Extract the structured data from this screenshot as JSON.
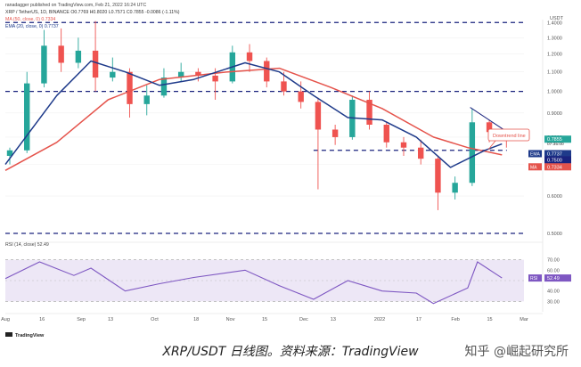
{
  "header": {
    "line1": "ranadagger published on TradingView.com, Feb 21, 2022 16:24 UTC",
    "line2": "XRP / TetherUS, 1D, BINANCE O0.7769 H0.8020 L0.7571 C0.7855 -0.0086 (-1.11%)",
    "line3": "MA (50, close, 0) 0.7334",
    "line4": "EMA (20, close, 0) 0.7737"
  },
  "price_axis": {
    "unit": "USDT",
    "ticks": [
      "1.4000",
      "1.3000",
      "1.2000",
      "1.1000",
      "1.0000",
      "0.9000",
      "0.8000",
      "0.7000",
      "0.6000",
      "0.5000"
    ]
  },
  "badges": {
    "price": "0.7855",
    "countdown": "07:35:00",
    "ema": "0.7737",
    "support": "0.7500",
    "ma": "0.7334",
    "ema_tag": "EMA",
    "ma_tag": "MA",
    "rsi_tag": "RSI",
    "rsi": "52.49"
  },
  "annotation": "Downtrend line",
  "rsi_header": "RSI (14, close) 52.49",
  "rsi_axis": {
    "ticks": [
      "70.00",
      "60.00",
      "40.00",
      "30.00"
    ]
  },
  "time_axis": [
    "Aug",
    "16",
    "Sep",
    "13",
    "Oct",
    "18",
    "Nov",
    "15",
    "Dec",
    "13",
    "2022",
    "17",
    "Feb",
    "15",
    "Mar"
  ],
  "footer_brand": "TradingView",
  "caption": "XRP/USDT 日线图。资料来源：TradingView",
  "watermark": "知乎 @崛起研究所",
  "colors": {
    "up": "#26a69a",
    "down": "#ef5350",
    "ema": "#1e3a8a",
    "ma": "#e5534b",
    "level_line": "#1a237e",
    "rsi_line": "#7e57c2",
    "rsi_band": "#ede7f6"
  },
  "chart_data": {
    "type": "candlestick",
    "y_scale": "log",
    "ylim": [
      0.5,
      1.42
    ],
    "horizontal_levels": [
      1.4,
      1.0,
      0.75,
      0.5
    ],
    "trendline": {
      "from": [
        "2022-02-07",
        0.925
      ],
      "to": [
        "2022-02-23",
        0.815
      ]
    },
    "date_range": [
      "2021-08-01",
      "2022-02-21"
    ],
    "ohlc_weekly_approx": [
      {
        "date": "2021-08-01",
        "o": 0.73,
        "h": 0.76,
        "l": 0.7,
        "c": 0.75
      },
      {
        "date": "2021-08-08",
        "o": 0.75,
        "h": 1.1,
        "l": 0.74,
        "c": 1.04
      },
      {
        "date": "2021-08-15",
        "o": 1.04,
        "h": 1.35,
        "l": 1.02,
        "c": 1.25
      },
      {
        "date": "2021-08-22",
        "o": 1.25,
        "h": 1.36,
        "l": 1.1,
        "c": 1.15
      },
      {
        "date": "2021-08-29",
        "o": 1.15,
        "h": 1.3,
        "l": 1.12,
        "c": 1.22
      },
      {
        "date": "2021-09-05",
        "o": 1.22,
        "h": 1.41,
        "l": 1.0,
        "c": 1.07
      },
      {
        "date": "2021-09-12",
        "o": 1.07,
        "h": 1.18,
        "l": 1.05,
        "c": 1.1
      },
      {
        "date": "2021-09-19",
        "o": 1.1,
        "h": 1.12,
        "l": 0.88,
        "c": 0.94
      },
      {
        "date": "2021-09-26",
        "o": 0.94,
        "h": 1.03,
        "l": 0.89,
        "c": 0.98
      },
      {
        "date": "2021-10-03",
        "o": 0.98,
        "h": 1.12,
        "l": 0.97,
        "c": 1.07
      },
      {
        "date": "2021-10-10",
        "o": 1.07,
        "h": 1.15,
        "l": 1.05,
        "c": 1.1
      },
      {
        "date": "2021-10-17",
        "o": 1.1,
        "h": 1.12,
        "l": 1.05,
        "c": 1.08
      },
      {
        "date": "2021-10-24",
        "o": 1.08,
        "h": 1.12,
        "l": 0.96,
        "c": 1.05
      },
      {
        "date": "2021-10-31",
        "o": 1.05,
        "h": 1.25,
        "l": 1.04,
        "c": 1.21
      },
      {
        "date": "2021-11-07",
        "o": 1.21,
        "h": 1.26,
        "l": 1.1,
        "c": 1.16
      },
      {
        "date": "2021-11-14",
        "o": 1.16,
        "h": 1.18,
        "l": 1.02,
        "c": 1.05
      },
      {
        "date": "2021-11-21",
        "o": 1.05,
        "h": 1.1,
        "l": 0.98,
        "c": 1.0
      },
      {
        "date": "2021-11-28",
        "o": 1.0,
        "h": 1.05,
        "l": 0.92,
        "c": 0.95
      },
      {
        "date": "2021-12-05",
        "o": 0.95,
        "h": 0.97,
        "l": 0.62,
        "c": 0.83
      },
      {
        "date": "2021-12-12",
        "o": 0.83,
        "h": 0.85,
        "l": 0.77,
        "c": 0.8
      },
      {
        "date": "2021-12-19",
        "o": 0.8,
        "h": 0.98,
        "l": 0.79,
        "c": 0.96
      },
      {
        "date": "2021-12-26",
        "o": 0.96,
        "h": 1.0,
        "l": 0.83,
        "c": 0.85
      },
      {
        "date": "2022-01-02",
        "o": 0.85,
        "h": 0.86,
        "l": 0.76,
        "c": 0.78
      },
      {
        "date": "2022-01-09",
        "o": 0.78,
        "h": 0.8,
        "l": 0.73,
        "c": 0.76
      },
      {
        "date": "2022-01-16",
        "o": 0.76,
        "h": 0.79,
        "l": 0.7,
        "c": 0.72
      },
      {
        "date": "2022-01-23",
        "o": 0.72,
        "h": 0.73,
        "l": 0.56,
        "c": 0.61
      },
      {
        "date": "2022-01-30",
        "o": 0.61,
        "h": 0.66,
        "l": 0.59,
        "c": 0.64
      },
      {
        "date": "2022-02-06",
        "o": 0.64,
        "h": 0.92,
        "l": 0.63,
        "c": 0.86
      },
      {
        "date": "2022-02-13",
        "o": 0.86,
        "h": 0.87,
        "l": 0.78,
        "c": 0.82
      },
      {
        "date": "2022-02-20",
        "o": 0.82,
        "h": 0.82,
        "l": 0.76,
        "c": 0.7855
      }
    ],
    "ema20": [
      {
        "date": "2021-08-01",
        "v": 0.7
      },
      {
        "date": "2021-08-22",
        "v": 0.98
      },
      {
        "date": "2021-09-05",
        "v": 1.16
      },
      {
        "date": "2021-09-19",
        "v": 1.1
      },
      {
        "date": "2021-10-03",
        "v": 1.03
      },
      {
        "date": "2021-10-17",
        "v": 1.06
      },
      {
        "date": "2021-11-07",
        "v": 1.15
      },
      {
        "date": "2021-11-21",
        "v": 1.1
      },
      {
        "date": "2021-12-05",
        "v": 0.98
      },
      {
        "date": "2021-12-19",
        "v": 0.88
      },
      {
        "date": "2022-01-02",
        "v": 0.87
      },
      {
        "date": "2022-01-16",
        "v": 0.8
      },
      {
        "date": "2022-01-30",
        "v": 0.69
      },
      {
        "date": "2022-02-13",
        "v": 0.75
      },
      {
        "date": "2022-02-20",
        "v": 0.7737
      }
    ],
    "ma50": [
      {
        "date": "2021-08-01",
        "v": 0.68
      },
      {
        "date": "2021-08-22",
        "v": 0.78
      },
      {
        "date": "2021-09-12",
        "v": 0.96
      },
      {
        "date": "2021-10-03",
        "v": 1.06
      },
      {
        "date": "2021-10-31",
        "v": 1.1
      },
      {
        "date": "2021-11-21",
        "v": 1.12
      },
      {
        "date": "2021-12-12",
        "v": 1.02
      },
      {
        "date": "2022-01-02",
        "v": 0.92
      },
      {
        "date": "2022-01-23",
        "v": 0.8
      },
      {
        "date": "2022-02-06",
        "v": 0.76
      },
      {
        "date": "2022-02-20",
        "v": 0.7334
      }
    ],
    "rsi14": [
      {
        "date": "2021-08-01",
        "v": 52
      },
      {
        "date": "2021-08-15",
        "v": 68
      },
      {
        "date": "2021-08-29",
        "v": 55
      },
      {
        "date": "2021-09-05",
        "v": 62
      },
      {
        "date": "2021-09-19",
        "v": 40
      },
      {
        "date": "2021-10-03",
        "v": 47
      },
      {
        "date": "2021-10-17",
        "v": 53
      },
      {
        "date": "2021-11-07",
        "v": 60
      },
      {
        "date": "2021-11-21",
        "v": 45
      },
      {
        "date": "2021-12-05",
        "v": 32
      },
      {
        "date": "2021-12-19",
        "v": 50
      },
      {
        "date": "2022-01-02",
        "v": 40
      },
      {
        "date": "2022-01-16",
        "v": 38
      },
      {
        "date": "2022-01-23",
        "v": 28
      },
      {
        "date": "2022-02-06",
        "v": 43
      },
      {
        "date": "2022-02-10",
        "v": 68
      },
      {
        "date": "2022-02-20",
        "v": 52.49
      }
    ],
    "rsi_band": [
      30,
      70
    ]
  }
}
